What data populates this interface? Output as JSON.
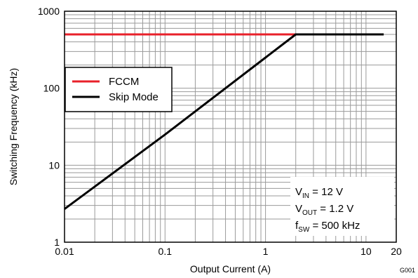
{
  "chart_data": {
    "type": "line",
    "xlabel": "Output Current (A)",
    "ylabel": "Switching Frequency (kHz)",
    "xscale": "log",
    "yscale": "log",
    "xlim": [
      0.01,
      20
    ],
    "ylim": [
      1,
      1000
    ],
    "x_tick_labels": [
      {
        "value": 0.01,
        "label": "0.01"
      },
      {
        "value": 0.1,
        "label": "0.1"
      },
      {
        "value": 1,
        "label": "1"
      },
      {
        "value": 10,
        "label": "10"
      },
      {
        "value": 20,
        "label": "20"
      }
    ],
    "y_tick_labels": [
      {
        "value": 1,
        "label": "1"
      },
      {
        "value": 10,
        "label": "10"
      },
      {
        "value": 100,
        "label": "100"
      },
      {
        "value": 1000,
        "label": "1000"
      }
    ],
    "grid": true,
    "legend_position": "left",
    "series": [
      {
        "name": "FCCM",
        "color": "#e8202a",
        "x": [
          0.01,
          2.0
        ],
        "y": [
          500,
          500
        ]
      },
      {
        "name": "Skip Mode",
        "color": "#000000",
        "x": [
          0.01,
          0.1,
          1.0,
          2.0,
          15.0
        ],
        "y": [
          2.7,
          25,
          250,
          500,
          500
        ]
      }
    ],
    "annotation": {
      "vin": {
        "main": "V",
        "sub": "IN",
        "rest": " = 12 V"
      },
      "vout": {
        "main": "V",
        "sub": "OUT",
        "rest": " = 1.2 V"
      },
      "fsw": {
        "main": "f",
        "sub": "SW",
        "rest": " = 500 kHz"
      }
    },
    "figure_id": "G001"
  }
}
